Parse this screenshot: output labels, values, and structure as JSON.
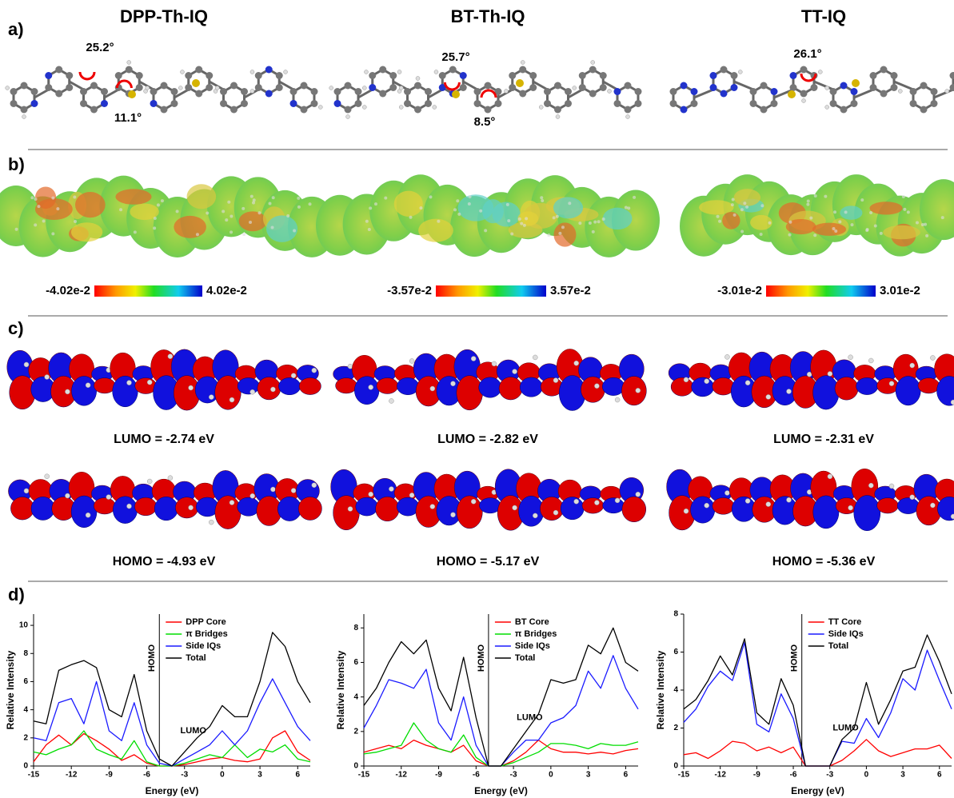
{
  "molecules": [
    "DPP-Th-IQ",
    "BT-Th-IQ",
    "TT-IQ"
  ],
  "panel_a": {
    "label": "a)",
    "angles": [
      [
        "25.2°",
        "11.1°"
      ],
      [
        "25.7°",
        "8.5°"
      ],
      [
        "26.1°"
      ]
    ]
  },
  "panel_b": {
    "label": "b)",
    "color_scales": [
      [
        "-4.02e-2",
        "4.02e-2"
      ],
      [
        "-3.57e-2",
        "3.57e-2"
      ],
      [
        "-3.01e-2",
        "3.01e-2"
      ]
    ]
  },
  "panel_c": {
    "label": "c)",
    "lumo": [
      "LUMO = -2.74 eV",
      "LUMO = -2.82 eV",
      "LUMO = -2.31 eV"
    ],
    "homo": [
      "HOMO = -4.93 eV",
      "HOMO = -5.17 eV",
      "HOMO = -5.36 eV"
    ]
  },
  "panel_d": {
    "label": "d)"
  },
  "chart_data": [
    {
      "type": "line",
      "x_label": "Energy (eV)",
      "y_label": "Relative Intensity",
      "x": [
        -15,
        -14,
        -13,
        -12,
        -11,
        -10,
        -9,
        -8,
        -7,
        -6,
        -5,
        -4,
        -3,
        -2,
        -1,
        0,
        1,
        2,
        3,
        4,
        5,
        6,
        7
      ],
      "xlim": [
        -15,
        7
      ],
      "xticks": [
        -15,
        -12,
        -9,
        -6,
        -3,
        0,
        3,
        6
      ],
      "ylim": [
        0,
        10.8
      ],
      "yticks": [
        0,
        2,
        4,
        6,
        8,
        10
      ],
      "homo_line": {
        "x": -5,
        "label": "HOMO"
      },
      "lumo_label": "LUMO",
      "series": [
        {
          "name": "DPP Core",
          "color": "#ff0000",
          "values": [
            0.3,
            1.5,
            2.2,
            1.5,
            2.3,
            1.8,
            1.2,
            0.4,
            0.8,
            0.2,
            0,
            0,
            0.1,
            0.3,
            0.5,
            0.6,
            0.4,
            0.3,
            0.5,
            2,
            2.5,
            1,
            0.4
          ]
        },
        {
          "name": "π Bridges",
          "color": "#00dd00",
          "values": [
            1,
            0.8,
            1.2,
            1.5,
            2.5,
            1.2,
            0.8,
            0.5,
            1.8,
            0.3,
            0,
            0,
            0.2,
            0.5,
            0.8,
            0.6,
            1.5,
            0.6,
            1.2,
            1,
            1.5,
            0.5,
            0.3
          ]
        },
        {
          "name": "Side IQs",
          "color": "#1a1aff",
          "values": [
            2,
            1.8,
            4.5,
            4.8,
            3,
            6,
            2.5,
            1.8,
            4.5,
            1.5,
            0.2,
            0,
            0.5,
            1,
            1.5,
            2.5,
            1.5,
            2.5,
            4.5,
            6.2,
            4.5,
            2.8,
            1.8
          ]
        },
        {
          "name": "Total",
          "color": "#000000",
          "values": [
            3.2,
            3,
            6.8,
            7.2,
            7.5,
            7,
            4,
            3.5,
            6.5,
            2.5,
            0.5,
            0,
            1,
            2,
            2.8,
            4.3,
            3.5,
            3.5,
            6,
            9.5,
            8.5,
            6,
            4.5
          ]
        }
      ]
    },
    {
      "type": "line",
      "x_label": "Energy (eV)",
      "y_label": "Relative Intensity",
      "x": [
        -15,
        -14,
        -13,
        -12,
        -11,
        -10,
        -9,
        -8,
        -7,
        -6,
        -5,
        -4,
        -3,
        -2,
        -1,
        0,
        1,
        2,
        3,
        4,
        5,
        6,
        7
      ],
      "xlim": [
        -15,
        7
      ],
      "xticks": [
        -15,
        -12,
        -9,
        -6,
        -3,
        0,
        3,
        6
      ],
      "ylim": [
        0,
        8.8
      ],
      "yticks": [
        0,
        2,
        4,
        6,
        8
      ],
      "homo_line": {
        "x": -5,
        "label": "HOMO"
      },
      "lumo_label": "LUMO",
      "series": [
        {
          "name": "BT Core",
          "color": "#ff0000",
          "values": [
            0.8,
            1,
            1.2,
            1,
            1.5,
            1.2,
            1,
            0.8,
            1.2,
            0.3,
            0,
            0,
            0.3,
            0.8,
            1.5,
            1,
            0.8,
            0.8,
            0.7,
            0.8,
            0.7,
            0.9,
            1
          ]
        },
        {
          "name": "π Bridges",
          "color": "#00dd00",
          "values": [
            0.7,
            0.8,
            1,
            1.2,
            2.5,
            1.5,
            1,
            0.8,
            1.8,
            0.5,
            0,
            0,
            0.2,
            0.5,
            0.8,
            1.3,
            1.3,
            1.2,
            1,
            1.3,
            1.2,
            1.2,
            1.4
          ]
        },
        {
          "name": "Side IQs",
          "color": "#1a1aff",
          "values": [
            2.2,
            3.5,
            5,
            4.8,
            4.5,
            5.6,
            2.5,
            1.5,
            4,
            1.2,
            0,
            0,
            0.8,
            1.5,
            1.5,
            2.5,
            2.8,
            3.5,
            5.5,
            4.5,
            6.4,
            4.5,
            3.3
          ]
        },
        {
          "name": "Total",
          "color": "#000000",
          "values": [
            3.5,
            4.5,
            6,
            7.2,
            6.5,
            7.3,
            4.5,
            3.2,
            6.3,
            2.8,
            0,
            0,
            1,
            2,
            3,
            5,
            4.8,
            5,
            7,
            6.5,
            8,
            6,
            5.5
          ]
        }
      ]
    },
    {
      "type": "line",
      "x_label": "Energy (eV)",
      "y_label": "Relative Intensity",
      "x": [
        -15,
        -14,
        -13,
        -12,
        -11,
        -10,
        -9,
        -8,
        -7,
        -6,
        -5,
        -4,
        -3,
        -2,
        -1,
        0,
        1,
        2,
        3,
        4,
        5,
        6,
        7
      ],
      "xlim": [
        -15,
        7
      ],
      "xticks": [
        -15,
        -12,
        -9,
        -6,
        -3,
        0,
        3,
        6
      ],
      "ylim": [
        0,
        8
      ],
      "yticks": [
        0,
        2,
        4,
        6,
        8
      ],
      "homo_line": {
        "x": -5.3,
        "label": "HOMO"
      },
      "lumo_label": "LUMO",
      "series": [
        {
          "name": "TT Core",
          "color": "#ff0000",
          "values": [
            0.6,
            0.7,
            0.4,
            0.8,
            1.3,
            1.2,
            0.8,
            1,
            0.7,
            1,
            0,
            0,
            0,
            0.3,
            0.8,
            1.4,
            0.8,
            0.5,
            0.7,
            0.9,
            0.9,
            1.1,
            0.4
          ]
        },
        {
          "name": "Side IQs",
          "color": "#1a1aff",
          "values": [
            2.3,
            3,
            4.2,
            5,
            4.5,
            6.5,
            2.2,
            1.8,
            3.8,
            2.5,
            0,
            0,
            0,
            1.3,
            1.2,
            2.5,
            1.5,
            2.8,
            4.6,
            4,
            6.1,
            4.5,
            3
          ]
        },
        {
          "name": "Total",
          "color": "#000000",
          "values": [
            3,
            3.5,
            4.5,
            5.8,
            4.8,
            6.7,
            2.8,
            2.2,
            4.6,
            3.2,
            0,
            0,
            0,
            1.4,
            2,
            4.4,
            2.2,
            3.5,
            5,
            5.2,
            6.9,
            5.5,
            3.8
          ]
        }
      ]
    }
  ]
}
